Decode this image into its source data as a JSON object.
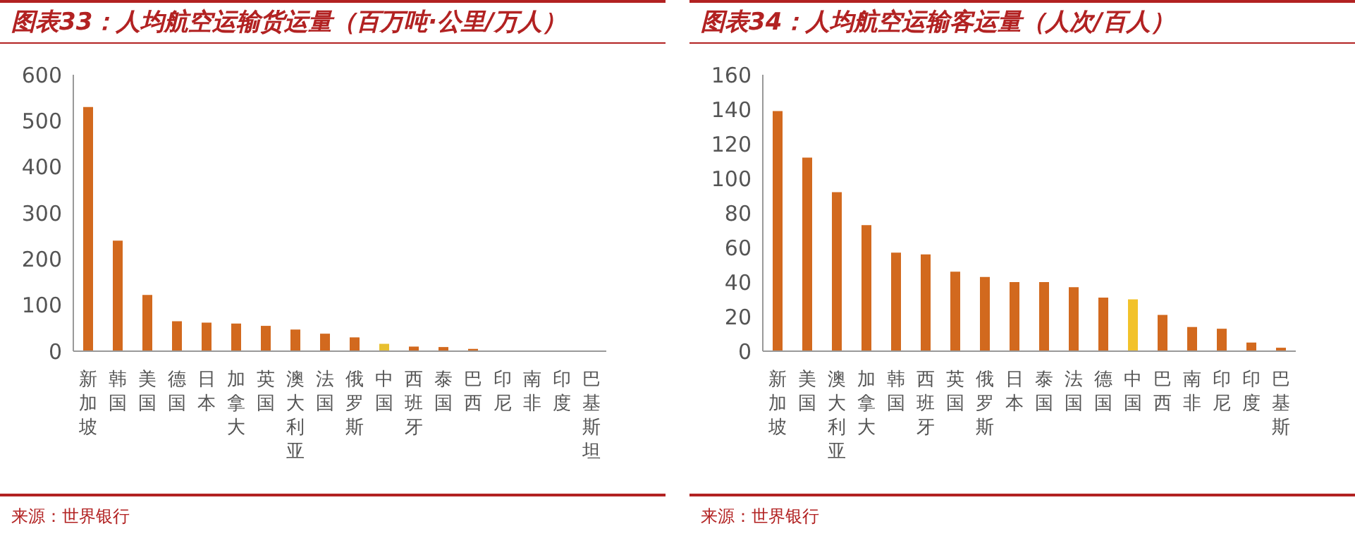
{
  "chart_data": [
    {
      "type": "bar",
      "title": "图表33：人均航空运输货运量（百万吨·公里/万人）",
      "categories": [
        "新加坡",
        "韩国",
        "美国",
        "德国",
        "日本",
        "加拿大",
        "英国",
        "澳大利亚",
        "法国",
        "俄罗斯",
        "中国",
        "西班牙",
        "泰国",
        "巴西",
        "印尼",
        "南非",
        "印度",
        "巴基斯坦"
      ],
      "values": [
        530,
        240,
        122,
        65,
        62,
        60,
        55,
        47,
        38,
        30,
        16,
        10,
        9,
        5,
        null,
        null,
        null,
        null
      ],
      "colors": [
        "#d2691e",
        "#d2691e",
        "#d2691e",
        "#d2691e",
        "#d2691e",
        "#d2691e",
        "#d2691e",
        "#d2691e",
        "#d2691e",
        "#d2691e",
        "#e8c030",
        "#d2691e",
        "#d2691e",
        "#d2691e",
        "#d2691e",
        "#d2691e",
        "#d2691e",
        "#d2691e"
      ],
      "ylim": [
        0,
        600
      ],
      "yticks": [
        0,
        100,
        200,
        300,
        400,
        500,
        600
      ],
      "annotations": [
        "来源：世界银行"
      ]
    },
    {
      "type": "bar",
      "title": "图表34：人均航空运输客运量（人次/百人）",
      "categories": [
        "新加坡",
        "美国",
        "澳大利亚",
        "加拿大",
        "韩国",
        "西班牙",
        "英国",
        "俄罗斯",
        "日本",
        "泰国",
        "法国",
        "德国",
        "中国",
        "巴西",
        "南非",
        "印尼",
        "印度",
        "巴基斯"
      ],
      "values": [
        139,
        112,
        92,
        73,
        57,
        56,
        46,
        43,
        40,
        40,
        37,
        31,
        30,
        21,
        14,
        13,
        5,
        2
      ],
      "colors": [
        "#d2691e",
        "#d2691e",
        "#d2691e",
        "#d2691e",
        "#d2691e",
        "#d2691e",
        "#d2691e",
        "#d2691e",
        "#d2691e",
        "#d2691e",
        "#d2691e",
        "#d2691e",
        "#f2c22a",
        "#d2691e",
        "#d2691e",
        "#d2691e",
        "#d2691e",
        "#d2691e"
      ],
      "ylim": [
        0,
        160
      ],
      "yticks": [
        0,
        20,
        40,
        60,
        80,
        100,
        120,
        140,
        160
      ],
      "annotations": [
        "来源：世界银行"
      ]
    }
  ]
}
